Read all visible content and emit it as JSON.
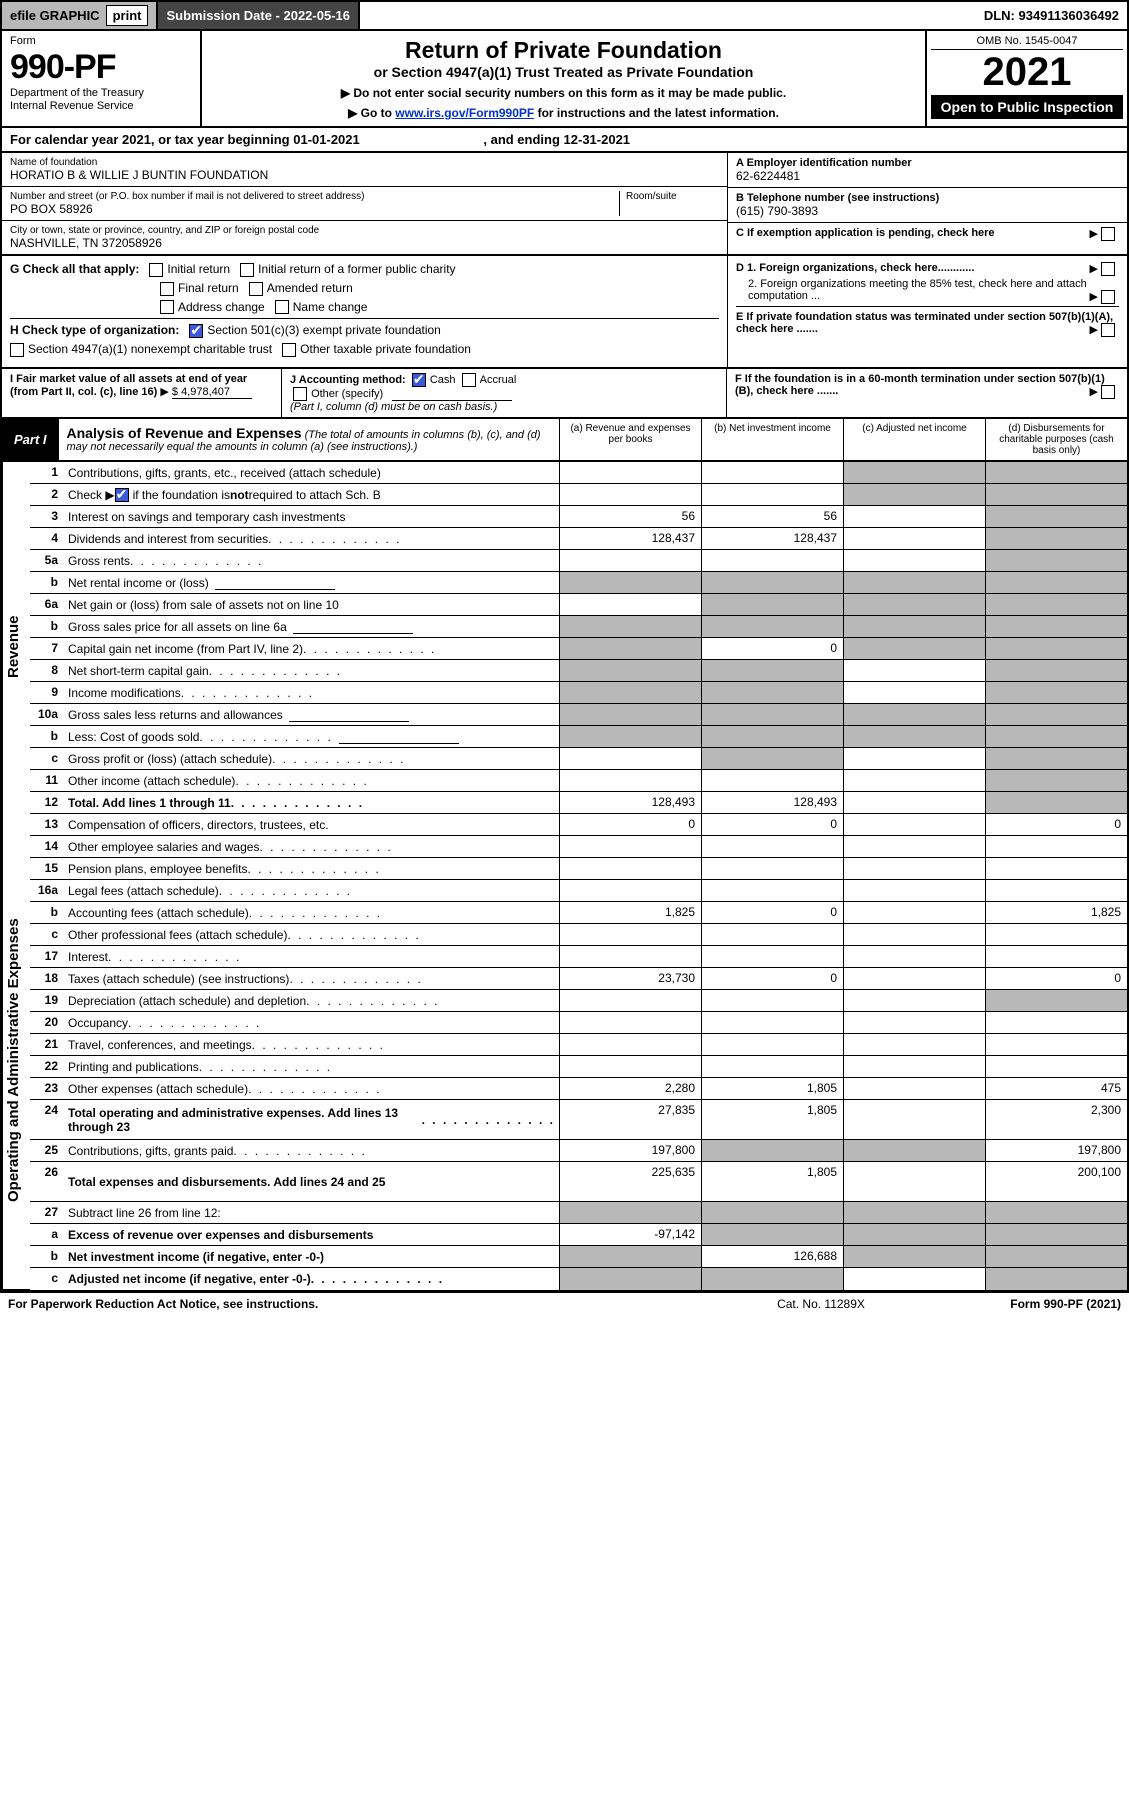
{
  "colors": {
    "grey_fill": "#b8b8b8",
    "dark_bar": "#444444",
    "black": "#000000",
    "checkbox_blue": "#3b5bdb",
    "link": "#0030cc"
  },
  "topbar": {
    "efile_label": "efile GRAPHIC",
    "print_btn": "print",
    "submission_label": "Submission Date - 2022-05-16",
    "dln": "DLN: 93491136036492"
  },
  "header": {
    "form_word": "Form",
    "form_no": "990-PF",
    "dept": "Department of the Treasury",
    "irs": "Internal Revenue Service",
    "title": "Return of Private Foundation",
    "subtitle": "or Section 4947(a)(1) Trust Treated as Private Foundation",
    "note1": "▶ Do not enter social security numbers on this form as it may be made public.",
    "note2_pre": "▶ Go to ",
    "note2_link": "www.irs.gov/Form990PF",
    "note2_post": " for instructions and the latest information.",
    "omb": "OMB No. 1545-0047",
    "year": "2021",
    "open": "Open to Public Inspection"
  },
  "calendar": {
    "pre": "For calendar year 2021, or tax year beginning ",
    "begin": "01-01-2021",
    "mid": " , and ending ",
    "end": "12-31-2021"
  },
  "id": {
    "name_lbl": "Name of foundation",
    "name": "HORATIO B & WILLIE J BUNTIN FOUNDATION",
    "addr_lbl": "Number and street (or P.O. box number if mail is not delivered to street address)",
    "room_lbl": "Room/suite",
    "addr": "PO BOX 58926",
    "city_lbl": "City or town, state or province, country, and ZIP or foreign postal code",
    "city": "NASHVILLE, TN  372058926",
    "ein_lbl": "A Employer identification number",
    "ein": "62-6224481",
    "tel_lbl": "B Telephone number (see instructions)",
    "tel": "(615) 790-3893",
    "c_lbl": "C If exemption application is pending, check here",
    "d1": "D 1. Foreign organizations, check here............",
    "d2": "2. Foreign organizations meeting the 85% test, check here and attach computation ...",
    "e": "E If private foundation status was terminated under section 507(b)(1)(A), check here .......",
    "f": "F If the foundation is in a 60-month termination under section 507(b)(1)(B), check here .......",
    "g_lbl": "G Check all that apply:",
    "g_opts": [
      "Initial return",
      "Initial return of a former public charity",
      "Final return",
      "Amended return",
      "Address change",
      "Name change"
    ],
    "h_lbl": "H Check type of organization:",
    "h_opts": [
      "Section 501(c)(3) exempt private foundation",
      "Section 4947(a)(1) nonexempt charitable trust",
      "Other taxable private foundation"
    ],
    "i_lbl": "I Fair market value of all assets at end of year (from Part II, col. (c), line 16)",
    "i_val": "$  4,978,407",
    "j_lbl": "J Accounting method:",
    "j_cash": "Cash",
    "j_accrual": "Accrual",
    "j_other": "Other (specify)",
    "j_note": "(Part I, column (d) must be on cash basis.)"
  },
  "part1": {
    "label": "Part I",
    "title": "Analysis of Revenue and Expenses",
    "title_note": " (The total of amounts in columns (b), (c), and (d) may not necessarily equal the amounts in column (a) (see instructions).)",
    "cols": {
      "a": "(a) Revenue and expenses per books",
      "b": "(b) Net investment income",
      "c": "(c) Adjusted net income",
      "d": "(d) Disbursements for charitable purposes (cash basis only)"
    }
  },
  "sections": {
    "revenue": "Revenue",
    "expenses": "Operating and Administrative Expenses"
  },
  "lines": [
    {
      "n": "1",
      "t": "Contributions, gifts, grants, etc., received (attach schedule)",
      "a": "",
      "b": "",
      "cgrey": true,
      "dgrey": true,
      "sec": "rev"
    },
    {
      "n": "2",
      "t": "Check ▶ ☑ if the foundation is not required to attach Sch. B",
      "dotsAfter": true,
      "a": "",
      "b": "",
      "cgrey": true,
      "dgrey": true,
      "allgrey": true,
      "sec": "rev",
      "checkblue": true
    },
    {
      "n": "3",
      "t": "Interest on savings and temporary cash investments",
      "a": "56",
      "b": "56",
      "c": "",
      "dgrey": true,
      "sec": "rev"
    },
    {
      "n": "4",
      "t": "Dividends and interest from securities",
      "dots": true,
      "a": "128,437",
      "b": "128,437",
      "c": "",
      "dgrey": true,
      "sec": "rev"
    },
    {
      "n": "5a",
      "t": "Gross rents",
      "dots": true,
      "a": "",
      "b": "",
      "c": "",
      "dgrey": true,
      "sec": "rev"
    },
    {
      "n": "b",
      "t": "Net rental income or (loss)",
      "subinput": true,
      "agrey": true,
      "bgrey": true,
      "cgrey": true,
      "dgrey": true,
      "sec": "rev"
    },
    {
      "n": "6a",
      "t": "Net gain or (loss) from sale of assets not on line 10",
      "a": "",
      "bgrey": true,
      "cgrey": true,
      "dgrey": true,
      "sec": "rev"
    },
    {
      "n": "b",
      "t": "Gross sales price for all assets on line 6a",
      "subinput": true,
      "agrey": true,
      "bgrey": true,
      "cgrey": true,
      "dgrey": true,
      "sec": "rev"
    },
    {
      "n": "7",
      "t": "Capital gain net income (from Part IV, line 2)",
      "dots": true,
      "agrey": true,
      "b": "0",
      "cgrey": true,
      "dgrey": true,
      "sec": "rev"
    },
    {
      "n": "8",
      "t": "Net short-term capital gain",
      "dots": true,
      "agrey": true,
      "bgrey": true,
      "c": "",
      "dgrey": true,
      "sec": "rev"
    },
    {
      "n": "9",
      "t": "Income modifications",
      "dots": true,
      "agrey": true,
      "bgrey": true,
      "c": "",
      "dgrey": true,
      "sec": "rev"
    },
    {
      "n": "10a",
      "t": "Gross sales less returns and allowances",
      "subinput": true,
      "agrey": true,
      "bgrey": true,
      "cgrey": true,
      "dgrey": true,
      "sec": "rev"
    },
    {
      "n": "b",
      "t": "Less: Cost of goods sold",
      "dots": true,
      "subinput": true,
      "agrey": true,
      "bgrey": true,
      "cgrey": true,
      "dgrey": true,
      "sec": "rev"
    },
    {
      "n": "c",
      "t": "Gross profit or (loss) (attach schedule)",
      "dots": true,
      "a": "",
      "bgrey": true,
      "c": "",
      "dgrey": true,
      "sec": "rev"
    },
    {
      "n": "11",
      "t": "Other income (attach schedule)",
      "dots": true,
      "a": "",
      "b": "",
      "c": "",
      "dgrey": true,
      "sec": "rev"
    },
    {
      "n": "12",
      "t": "Total. Add lines 1 through 11",
      "bold": true,
      "dots": true,
      "a": "128,493",
      "b": "128,493",
      "c": "",
      "dgrey": true,
      "sec": "rev"
    },
    {
      "n": "13",
      "t": "Compensation of officers, directors, trustees, etc.",
      "a": "0",
      "b": "0",
      "c": "",
      "d": "0",
      "sec": "exp"
    },
    {
      "n": "14",
      "t": "Other employee salaries and wages",
      "dots": true,
      "a": "",
      "b": "",
      "c": "",
      "d": "",
      "sec": "exp"
    },
    {
      "n": "15",
      "t": "Pension plans, employee benefits",
      "dots": true,
      "a": "",
      "b": "",
      "c": "",
      "d": "",
      "sec": "exp"
    },
    {
      "n": "16a",
      "t": "Legal fees (attach schedule)",
      "dots": true,
      "a": "",
      "b": "",
      "c": "",
      "d": "",
      "sec": "exp"
    },
    {
      "n": "b",
      "t": "Accounting fees (attach schedule)",
      "dots": true,
      "a": "1,825",
      "b": "0",
      "c": "",
      "d": "1,825",
      "sec": "exp"
    },
    {
      "n": "c",
      "t": "Other professional fees (attach schedule)",
      "dots": true,
      "a": "",
      "b": "",
      "c": "",
      "d": "",
      "sec": "exp"
    },
    {
      "n": "17",
      "t": "Interest",
      "dots": true,
      "a": "",
      "b": "",
      "c": "",
      "d": "",
      "sec": "exp"
    },
    {
      "n": "18",
      "t": "Taxes (attach schedule) (see instructions)",
      "dots": true,
      "a": "23,730",
      "b": "0",
      "c": "",
      "d": "0",
      "sec": "exp"
    },
    {
      "n": "19",
      "t": "Depreciation (attach schedule) and depletion",
      "dots": true,
      "a": "",
      "b": "",
      "c": "",
      "dgrey": true,
      "sec": "exp"
    },
    {
      "n": "20",
      "t": "Occupancy",
      "dots": true,
      "a": "",
      "b": "",
      "c": "",
      "d": "",
      "sec": "exp"
    },
    {
      "n": "21",
      "t": "Travel, conferences, and meetings",
      "dots": true,
      "a": "",
      "b": "",
      "c": "",
      "d": "",
      "sec": "exp"
    },
    {
      "n": "22",
      "t": "Printing and publications",
      "dots": true,
      "a": "",
      "b": "",
      "c": "",
      "d": "",
      "sec": "exp"
    },
    {
      "n": "23",
      "t": "Other expenses (attach schedule)",
      "dots": true,
      "a": "2,280",
      "b": "1,805",
      "c": "",
      "d": "475",
      "sec": "exp"
    },
    {
      "n": "24",
      "t": "Total operating and administrative expenses. Add lines 13 through 23",
      "bold": true,
      "dots": true,
      "a": "27,835",
      "b": "1,805",
      "c": "",
      "d": "2,300",
      "sec": "exp",
      "tall": true
    },
    {
      "n": "25",
      "t": "Contributions, gifts, grants paid",
      "dots": true,
      "a": "197,800",
      "bgrey": true,
      "cgrey": true,
      "d": "197,800",
      "sec": "exp"
    },
    {
      "n": "26",
      "t": "Total expenses and disbursements. Add lines 24 and 25",
      "bold": true,
      "a": "225,635",
      "b": "1,805",
      "c": "",
      "d": "200,100",
      "sec": "exp",
      "tall": true
    },
    {
      "n": "27",
      "t": "Subtract line 26 from line 12:",
      "agrey": true,
      "bgrey": true,
      "cgrey": true,
      "dgrey": true,
      "sec": "net"
    },
    {
      "n": "a",
      "t": "Excess of revenue over expenses and disbursements",
      "bold": true,
      "a": "-97,142",
      "bgrey": true,
      "cgrey": true,
      "dgrey": true,
      "sec": "net"
    },
    {
      "n": "b",
      "t": "Net investment income (if negative, enter -0-)",
      "bold": true,
      "agrey": true,
      "b": "126,688",
      "cgrey": true,
      "dgrey": true,
      "sec": "net"
    },
    {
      "n": "c",
      "t": "Adjusted net income (if negative, enter -0-)",
      "bold": true,
      "dots": true,
      "agrey": true,
      "bgrey": true,
      "c": "",
      "dgrey": true,
      "sec": "net"
    }
  ],
  "footer": {
    "left": "For Paperwork Reduction Act Notice, see instructions.",
    "mid": "Cat. No. 11289X",
    "right": "Form 990-PF (2021)"
  }
}
